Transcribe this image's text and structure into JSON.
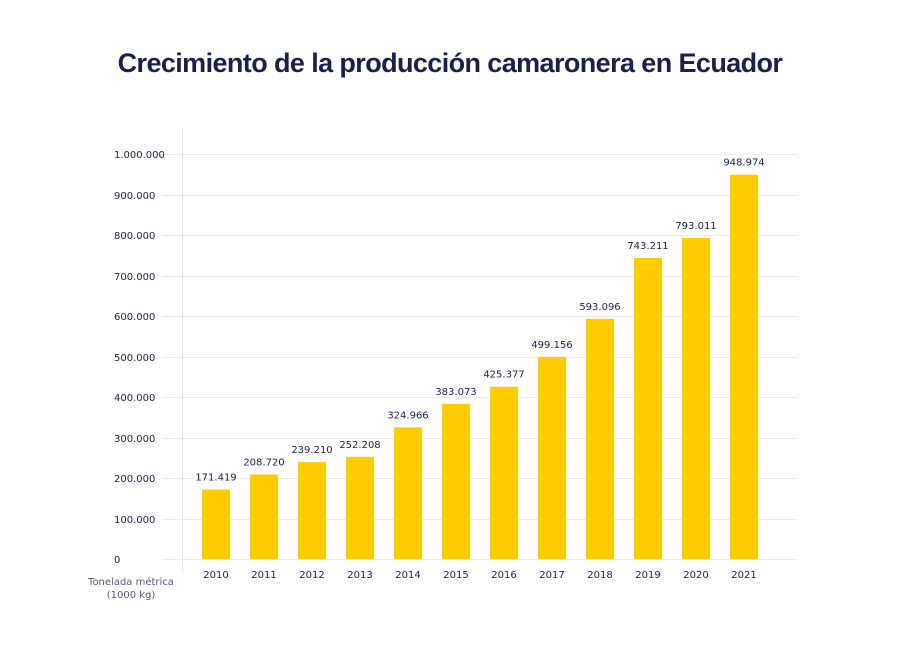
{
  "chart_data": {
    "type": "bar",
    "title": "Crecimiento de la producción camaronera en Ecuador",
    "xlabel": "",
    "ylabel": "Tonelada métrica (1000 kg)",
    "ylabel_lines": [
      "Tonelada métrica",
      "(1000 kg)"
    ],
    "categories": [
      "2010",
      "2011",
      "2012",
      "2013",
      "2014",
      "2015",
      "2016",
      "2017",
      "2018",
      "2019",
      "2020",
      "2021"
    ],
    "values": [
      171419,
      208720,
      239210,
      252208,
      324966,
      383073,
      425377,
      499156,
      593096,
      743211,
      793011,
      948974
    ],
    "value_labels": [
      "171.419",
      "208.720",
      "239.210",
      "252.208",
      "324.966",
      "383.073",
      "425.377",
      "499.156",
      "593.096",
      "743.211",
      "793.011",
      "948.974"
    ],
    "ylim": [
      0,
      1000000
    ],
    "yticks": [
      0,
      100000,
      200000,
      300000,
      400000,
      500000,
      600000,
      700000,
      800000,
      900000,
      1000000
    ],
    "ytick_labels": [
      "0",
      "100.000",
      "200.000",
      "300.000",
      "400.000",
      "500.000",
      "600.000",
      "700.000",
      "800.000",
      "900.000",
      "1.000.000"
    ],
    "grid": true,
    "legend": "none",
    "colors": {
      "bar": "#FFCC00",
      "text": "#1A1F4B",
      "grid": "#EBEBEB"
    }
  }
}
